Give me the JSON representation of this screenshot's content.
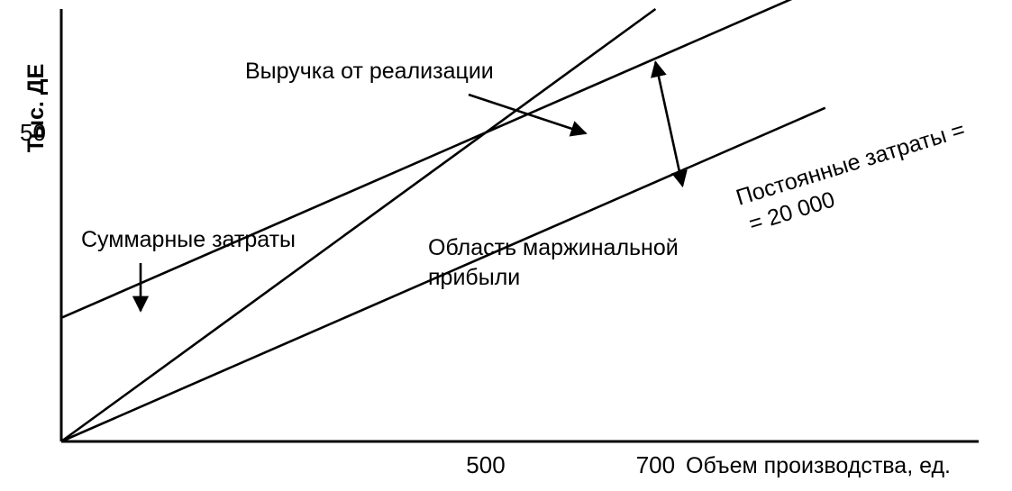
{
  "chart_data": {
    "type": "line",
    "title": "",
    "ylabel": "Тыс. ДЕ",
    "xlabel": "Объем производства, ед.",
    "x_ticks": [
      500,
      700
    ],
    "y_ticks": [
      50
    ],
    "xlim": [
      0,
      1000
    ],
    "ylim": [
      0,
      70
    ],
    "grid": false,
    "series": [
      {
        "key": "revenue",
        "name": "Выручка от реализации",
        "x": [
          0,
          700
        ],
        "y": [
          0,
          70
        ]
      },
      {
        "key": "total_costs",
        "name": "Суммарные затраты",
        "x": [
          0,
          900
        ],
        "y": [
          20,
          74
        ]
      },
      {
        "key": "variable_costs",
        "name": "",
        "x": [
          0,
          900
        ],
        "y": [
          0,
          54
        ]
      }
    ],
    "annotations": {
      "revenue_label": "Выручка от реализации",
      "total_costs_label": "Суммарные затраты",
      "margin_area_line1": "Область маржинальной",
      "margin_area_line2": "прибыли",
      "fixed_costs_line1": "Постоянные затраты =",
      "fixed_costs_line2": "= 20 000",
      "fixed_costs_marker_x": 700
    }
  }
}
